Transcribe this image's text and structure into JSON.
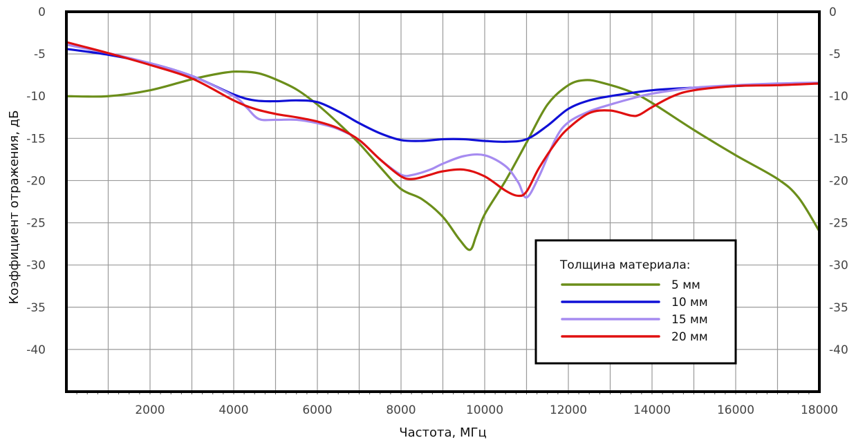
{
  "chart_data": {
    "type": "line",
    "xlabel": "Частота, МГц",
    "ylabel": "Коэффициент отражения, дБ",
    "xlim": [
      0,
      18000
    ],
    "ylim": [
      -45,
      0
    ],
    "x_ticks": [
      2000,
      4000,
      6000,
      8000,
      10000,
      12000,
      14000,
      16000,
      18000
    ],
    "y_ticks": [
      0,
      -5,
      -10,
      -15,
      -20,
      -25,
      -30,
      -35,
      -40
    ],
    "x_tick_labels": [
      "2000",
      "4000",
      "6000",
      "8000",
      "10000",
      "12000",
      "14000",
      "16000",
      "18000"
    ],
    "y_tick_labels": [
      "0",
      "-5",
      "-10",
      "-15",
      "-20",
      "-25",
      "-30",
      "-35",
      "-40"
    ],
    "right_axis": true,
    "grid": true,
    "legend": {
      "title": "Толщина материала:",
      "placement": "bottom-right"
    },
    "series": [
      {
        "name": "5 мм",
        "color": "#6b8e1a",
        "x": [
          0,
          1000,
          2000,
          3000,
          3800,
          4200,
          4600,
          5000,
          5500,
          6000,
          6500,
          7000,
          7500,
          8000,
          8500,
          9000,
          9400,
          9650,
          9800,
          10000,
          10500,
          11000,
          11500,
          12000,
          12400,
          12800,
          13500,
          14000,
          15000,
          16000,
          17000,
          17500,
          18000
        ],
        "y": [
          -10,
          -10,
          -9.3,
          -8,
          -7.2,
          -7.1,
          -7.3,
          -8,
          -9.2,
          -11,
          -13.2,
          -15.6,
          -18.4,
          -21,
          -22.2,
          -24.3,
          -27,
          -28.2,
          -26.5,
          -24,
          -20,
          -15.5,
          -11,
          -8.7,
          -8.1,
          -8.4,
          -9.5,
          -10.8,
          -14,
          -17,
          -19.8,
          -22,
          -26
        ]
      },
      {
        "name": "10 мм",
        "color": "#1010d6",
        "x": [
          0,
          1000,
          2000,
          3000,
          4000,
          4500,
          5000,
          5500,
          6000,
          6500,
          7000,
          7500,
          8000,
          8500,
          9000,
          9500,
          10000,
          10500,
          11000,
          11500,
          12000,
          12500,
          13000,
          14000,
          15000,
          16000,
          17000,
          18000
        ],
        "y": [
          -4.4,
          -5.1,
          -6.1,
          -7.6,
          -9.8,
          -10.5,
          -10.6,
          -10.5,
          -10.7,
          -11.8,
          -13.2,
          -14.4,
          -15.2,
          -15.3,
          -15.1,
          -15.1,
          -15.3,
          -15.4,
          -15.1,
          -13.5,
          -11.5,
          -10.5,
          -10,
          -9.3,
          -9,
          -8.8,
          -8.6,
          -8.5
        ]
      },
      {
        "name": "15 мм",
        "color": "#a68bf0",
        "x": [
          0,
          1000,
          2000,
          3000,
          4000,
          4300,
          4600,
          5000,
          5500,
          6000,
          6500,
          7000,
          7500,
          8000,
          8300,
          8700,
          9000,
          9500,
          10000,
          10500,
          10800,
          11000,
          11300,
          11700,
          12000,
          12500,
          13000,
          13500,
          14000,
          15000,
          16000,
          17000,
          18000
        ],
        "y": [
          -3.9,
          -4.9,
          -6.1,
          -7.6,
          -10,
          -11.3,
          -12.7,
          -12.8,
          -12.8,
          -13.2,
          -13.9,
          -15.2,
          -17.5,
          -19.3,
          -19.3,
          -18.7,
          -18,
          -17.1,
          -17,
          -18.3,
          -20.2,
          -22,
          -19.5,
          -15,
          -13.1,
          -11.8,
          -11,
          -10.3,
          -9.7,
          -9,
          -8.7,
          -8.5,
          -8.4
        ]
      },
      {
        "name": "20 мм",
        "color": "#e01010",
        "x": [
          0,
          1000,
          2000,
          3000,
          4000,
          4500,
          5000,
          5500,
          6000,
          6500,
          7000,
          7500,
          8000,
          8300,
          8700,
          9000,
          9500,
          10000,
          10500,
          10800,
          11000,
          11300,
          11700,
          12000,
          12500,
          13000,
          13500,
          13700,
          14000,
          14500,
          15000,
          16000,
          17000,
          18000
        ],
        "y": [
          -3.6,
          -4.9,
          -6.3,
          -7.9,
          -10.5,
          -11.5,
          -12.1,
          -12.5,
          -13,
          -13.8,
          -15.2,
          -17.5,
          -19.5,
          -19.8,
          -19.3,
          -18.9,
          -18.7,
          -19.5,
          -21.2,
          -21.8,
          -21.3,
          -18.5,
          -15.5,
          -13.8,
          -12,
          -11.7,
          -12.3,
          -12.2,
          -11.3,
          -10,
          -9.3,
          -8.8,
          -8.7,
          -8.5
        ]
      }
    ]
  }
}
